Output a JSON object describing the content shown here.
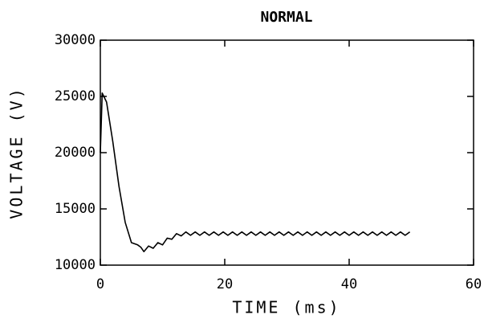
{
  "chart_data": {
    "type": "line",
    "title": "NORMAL",
    "x_label": "TIME (ms)",
    "y_label": "VOLTAGE (V)",
    "x": [
      0,
      0.3,
      1,
      2,
      3,
      4,
      5,
      6,
      6.5,
      7,
      7.75,
      8.5,
      9.25,
      10,
      10.75,
      11.5,
      12.25,
      13,
      13.75,
      14.5,
      15.25,
      16,
      16.75,
      17.5,
      18.25,
      19,
      19.75,
      20.5,
      21.25,
      22,
      22.75,
      23.5,
      24.25,
      25,
      25.75,
      26.5,
      27.25,
      28,
      28.75,
      29.5,
      30.25,
      31,
      31.75,
      32.5,
      33.25,
      34,
      34.75,
      35.5,
      36.25,
      37,
      37.75,
      38.5,
      39.25,
      40,
      40.75,
      41.5,
      42.25,
      43,
      43.75,
      44.5,
      45.25,
      46,
      46.75,
      47.5,
      48.25,
      49,
      49.75
    ],
    "series": [
      {
        "name": "voltage",
        "color": "#000000",
        "values": [
          20000,
          25300,
          24500,
          21000,
          17000,
          13800,
          12000,
          11800,
          11600,
          11200,
          11700,
          11500,
          12000,
          11800,
          12400,
          12300,
          12800,
          12600,
          12950,
          12650,
          12950,
          12650,
          12950,
          12650,
          12950,
          12650,
          12950,
          12650,
          12950,
          12650,
          12950,
          12650,
          12950,
          12650,
          12950,
          12650,
          12950,
          12650,
          12950,
          12650,
          12950,
          12650,
          12950,
          12650,
          12950,
          12650,
          12950,
          12650,
          12950,
          12650,
          12950,
          12650,
          12950,
          12650,
          12950,
          12650,
          12950,
          12650,
          12950,
          12650,
          12950,
          12650,
          12950,
          12650,
          12950,
          12650,
          12950
        ]
      }
    ],
    "xlim": [
      0,
      60
    ],
    "xticks": [
      0,
      20,
      40,
      60
    ],
    "ylim": [
      10000,
      30000
    ],
    "yticks": [
      10000,
      15000,
      20000,
      25000,
      30000
    ],
    "grid": false
  }
}
